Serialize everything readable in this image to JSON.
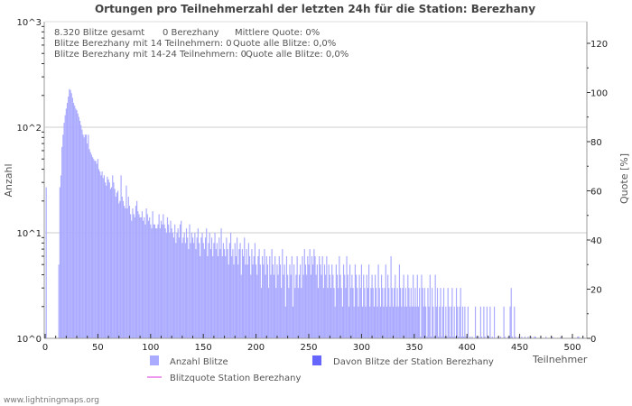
{
  "chart_data": {
    "type": "bar",
    "title": "Ortungen pro Teilnehmerzahl der letzten 24h für die Station: Berezhany",
    "xlabel": "Teilnehmer",
    "ylabel": "Anzahl",
    "y2label": "Quote [%]",
    "yscale": "log",
    "ylim": [
      1,
      1000
    ],
    "y_tick_labels": [
      "10^0",
      "10^1",
      "10^2",
      "10^3"
    ],
    "xlim": [
      0,
      512
    ],
    "x_ticks": [
      0,
      50,
      100,
      150,
      200,
      250,
      300,
      350,
      400,
      450,
      500
    ],
    "y2lim": [
      0,
      130
    ],
    "y2_ticks": [
      0,
      20,
      40,
      60,
      80,
      100,
      120
    ],
    "x_start": 1,
    "series": [
      {
        "name": "Anzahl Blitze",
        "color": "#aaaaff",
        "values": [
          27,
          0,
          0,
          0,
          0,
          0,
          0,
          0,
          0,
          0,
          0,
          0,
          5,
          27,
          35,
          65,
          85,
          110,
          130,
          150,
          170,
          195,
          230,
          225,
          210,
          190,
          170,
          160,
          150,
          145,
          135,
          125,
          115,
          105,
          95,
          85,
          80,
          85,
          85,
          70,
          85,
          62,
          58,
          55,
          52,
          50,
          48,
          48,
          45,
          50,
          40,
          38,
          35,
          38,
          33,
          35,
          30,
          28,
          34,
          32,
          30,
          26,
          27,
          35,
          30,
          26,
          22,
          24,
          25,
          19,
          20,
          35,
          22,
          20,
          18,
          17,
          28,
          17,
          22,
          18,
          15,
          13,
          17,
          15,
          14,
          18,
          20,
          16,
          15,
          14,
          14,
          16,
          13,
          14,
          12,
          17,
          15,
          13,
          14,
          12,
          11,
          16,
          12,
          12,
          11,
          11,
          12,
          15,
          11,
          13,
          12,
          15,
          12,
          11,
          10,
          14,
          12,
          10,
          13,
          11,
          10,
          9,
          12,
          8,
          10,
          11,
          9,
          12,
          13,
          8,
          9,
          10,
          8,
          11,
          9,
          7,
          12,
          8,
          10,
          9,
          8,
          10,
          7,
          9,
          11,
          8,
          6,
          9,
          10,
          8,
          7,
          9,
          11,
          6,
          8,
          10,
          7,
          9,
          6,
          8,
          10,
          7,
          8,
          6,
          9,
          7,
          11,
          6,
          8,
          7,
          6,
          9,
          7,
          5,
          8,
          10,
          6,
          7,
          5,
          8,
          6,
          9,
          5,
          7,
          8,
          4,
          7,
          6,
          9,
          5,
          7,
          5,
          8,
          6,
          4,
          7,
          5,
          6,
          8,
          5,
          4,
          6,
          7,
          5,
          3,
          6,
          5,
          7,
          4,
          6,
          5,
          3,
          6,
          4,
          7,
          5,
          4,
          6,
          3,
          5,
          4,
          6,
          5,
          3,
          7,
          4,
          5,
          2,
          6,
          4,
          3,
          5,
          4,
          6,
          2,
          5,
          3,
          4,
          6,
          3,
          4,
          5,
          3,
          6,
          4,
          7,
          5,
          4,
          6,
          5,
          7,
          4,
          6,
          5,
          7,
          6,
          4,
          5,
          3,
          6,
          5,
          4,
          6,
          3,
          5,
          4,
          6,
          3,
          5,
          4,
          3,
          5,
          4,
          3,
          2,
          5,
          4,
          3,
          6,
          4,
          3,
          2,
          5,
          4,
          3,
          6,
          4,
          2,
          5,
          3,
          4,
          3,
          2,
          5,
          4,
          3,
          2,
          4,
          3,
          5,
          2,
          4,
          3,
          2,
          4,
          3,
          5,
          2,
          3,
          4,
          3,
          2,
          4,
          3,
          2,
          5,
          3,
          2,
          4,
          3,
          2,
          3,
          5,
          2,
          4,
          3,
          2,
          6,
          3,
          2,
          3,
          4,
          2,
          3,
          2,
          5,
          3,
          2,
          3,
          4,
          2,
          3,
          2,
          4,
          3,
          2,
          3,
          2,
          4,
          2,
          3,
          2,
          4,
          2,
          3,
          1,
          4,
          3,
          2,
          3,
          2,
          1,
          3,
          2,
          4,
          1,
          3,
          2,
          1,
          4,
          2,
          3,
          1,
          2,
          3,
          1,
          2,
          3,
          1,
          2,
          1,
          3,
          2,
          1,
          2,
          3,
          1,
          2,
          1,
          3,
          2,
          1,
          2,
          3,
          1,
          2,
          1,
          2,
          1,
          0,
          2,
          0,
          1,
          0,
          1,
          0,
          0,
          2,
          1,
          0,
          1,
          0,
          2,
          1,
          0,
          2,
          1,
          0,
          2,
          0,
          1,
          2,
          0,
          1,
          0,
          2,
          0,
          0,
          1,
          0,
          0,
          1,
          0,
          0,
          2,
          1,
          0,
          0,
          1,
          0,
          2,
          3,
          1,
          0,
          2,
          1,
          0,
          0,
          1,
          0,
          0,
          1,
          0,
          0,
          1,
          0,
          0,
          1,
          0,
          0,
          1,
          0,
          0,
          1,
          1,
          0,
          0,
          0,
          0,
          1,
          0,
          0,
          0,
          0,
          1,
          0,
          0,
          0,
          0,
          0,
          1,
          0,
          0,
          0,
          0,
          0,
          0,
          0,
          1,
          0,
          0,
          0,
          0,
          0,
          0,
          0,
          0,
          0,
          0,
          1,
          0,
          0,
          0,
          0,
          1,
          1,
          0,
          0,
          0,
          1
        ]
      },
      {
        "name": "Davon Blitze der Station Berezhany",
        "color": "#6666ff",
        "values": []
      },
      {
        "name": "Blitzquote Station Berezhany",
        "color": "#ee99ee",
        "type": "line",
        "values": []
      }
    ],
    "legend": [
      "Anzahl Blitze",
      "Davon Blitze der Station Berezhany",
      "Blitzquote Station Berezhany"
    ],
    "legend_placement": "bottom",
    "grid": true
  },
  "info": {
    "line1a": "8.320 Blitze gesamt",
    "line1b": "0 Berezhany",
    "line1c": "Mittlere Quote: 0%",
    "line2a": "Blitze Berezhany mit 14 Teilnehmern: 0",
    "line2b": "Quote alle Blitze: 0,0%",
    "line3a": "Blitze Berezhany mit 14-24 Teilnehmern: 0",
    "line3b": "Quote alle Blitze: 0,0%"
  },
  "footer": "www.lightningmaps.org"
}
